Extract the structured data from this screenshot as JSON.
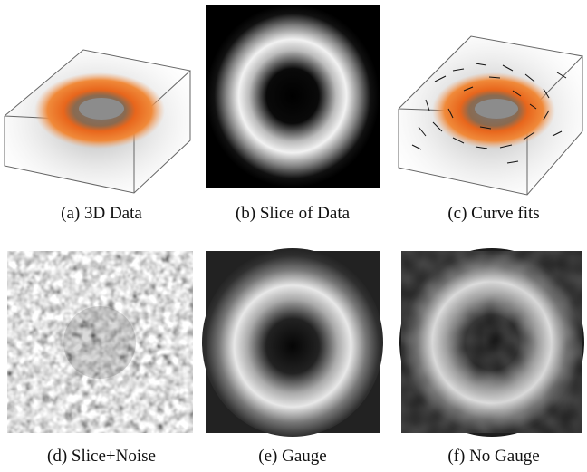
{
  "panels": [
    {
      "caption": "(a) 3D Data"
    },
    {
      "caption": "(b) Slice of Data"
    },
    {
      "caption": "(c) Curve fits"
    },
    {
      "caption": "(d) Slice+Noise"
    },
    {
      "caption": "(e) Gauge"
    },
    {
      "caption": "(f) No Gauge"
    }
  ]
}
